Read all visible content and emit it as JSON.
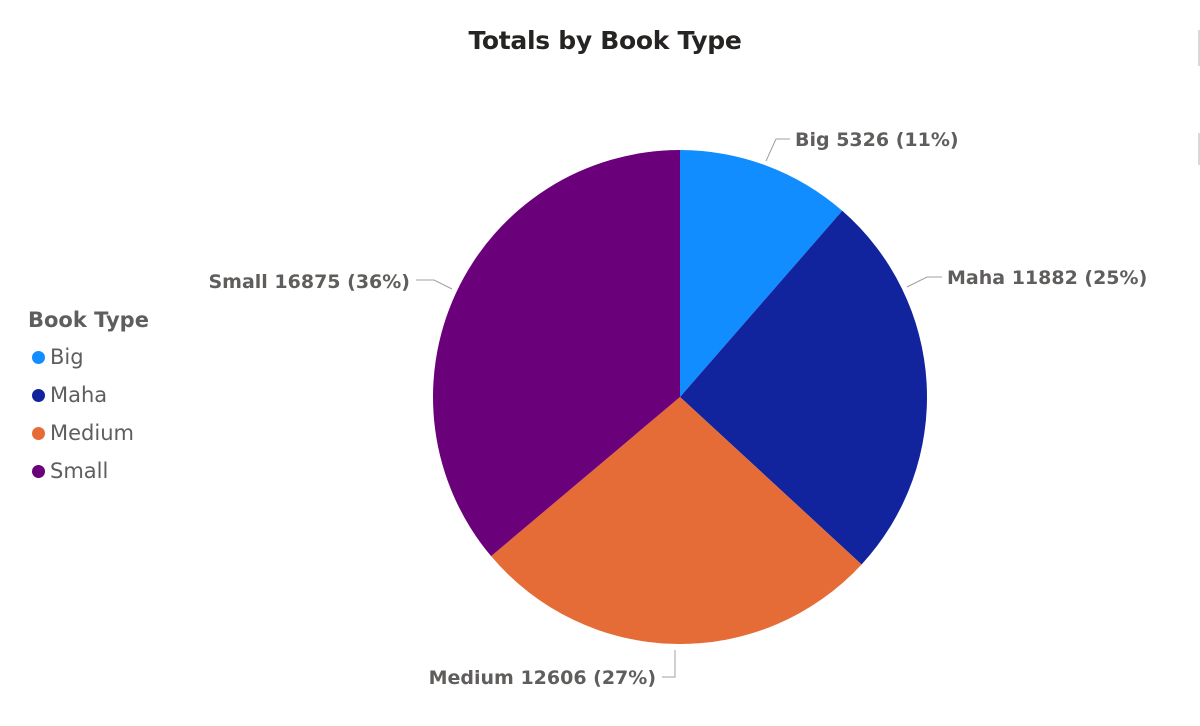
{
  "chart_data": {
    "type": "pie",
    "title": "Totals by Book Type",
    "legend": {
      "title": "Book Type",
      "position": "left"
    },
    "slices": [
      {
        "name": "Big",
        "value": 5326,
        "label": "Big 5326 (11%)",
        "color": "#118dff"
      },
      {
        "name": "Maha",
        "value": 11882,
        "label": "Maha 11882 (25%)",
        "color": "#12239e"
      },
      {
        "name": "Medium",
        "value": 12606,
        "label": "Medium 12606 (27%)",
        "color": "#e66c37"
      },
      {
        "name": "Small",
        "value": 16875,
        "label": "Small 16875 (36%)",
        "color": "#6b007b"
      }
    ]
  }
}
